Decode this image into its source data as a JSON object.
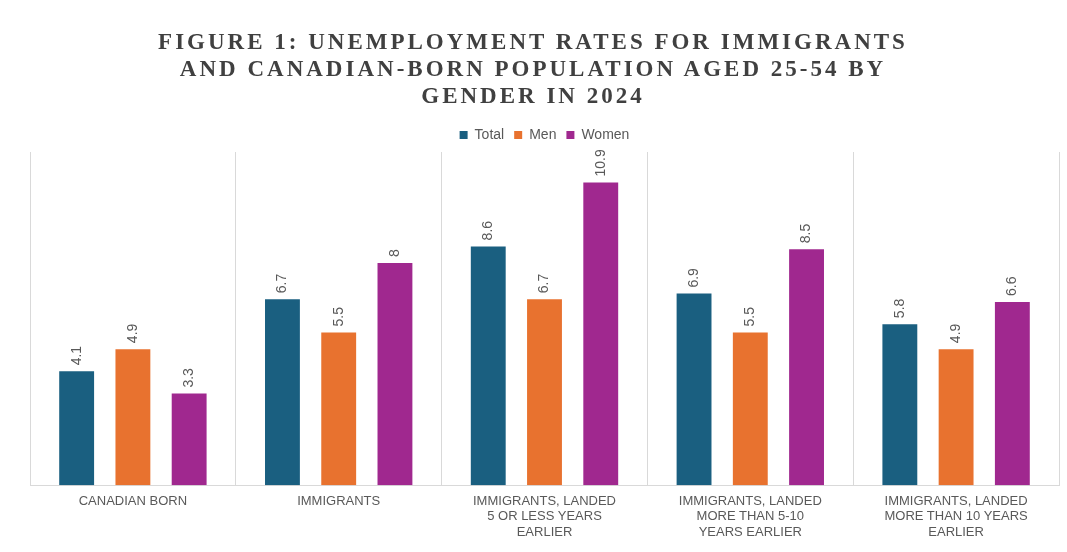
{
  "chart_data": {
    "type": "bar",
    "title": "FIGURE 1: UNEMPLOYMENT RATES FOR IMMIGRANTS AND CANADIAN-BORN POPULATION AGED 25-54 BY GENDER IN 2024",
    "categories": [
      "CANADIAN BORN",
      "IMMIGRANTS",
      "IMMIGRANTS, LANDED 5 OR LESS YEARS EARLIER",
      "IMMIGRANTS, LANDED MORE THAN 5-10 YEARS EARLIER",
      "IMMIGRANTS, LANDED MORE THAN 10 YEARS EARLIER"
    ],
    "series": [
      {
        "name": "Total",
        "color": "#1a5f80",
        "values": [
          4.1,
          6.7,
          8.6,
          6.9,
          5.8
        ]
      },
      {
        "name": "Men",
        "color": "#e8722f",
        "values": [
          4.9,
          5.5,
          6.7,
          5.5,
          4.9
        ]
      },
      {
        "name": "Women",
        "color": "#a0288f",
        "values": [
          3.3,
          8,
          10.9,
          8.5,
          6.6
        ]
      }
    ],
    "data_labels": true,
    "grid": "x",
    "legend": "top"
  }
}
